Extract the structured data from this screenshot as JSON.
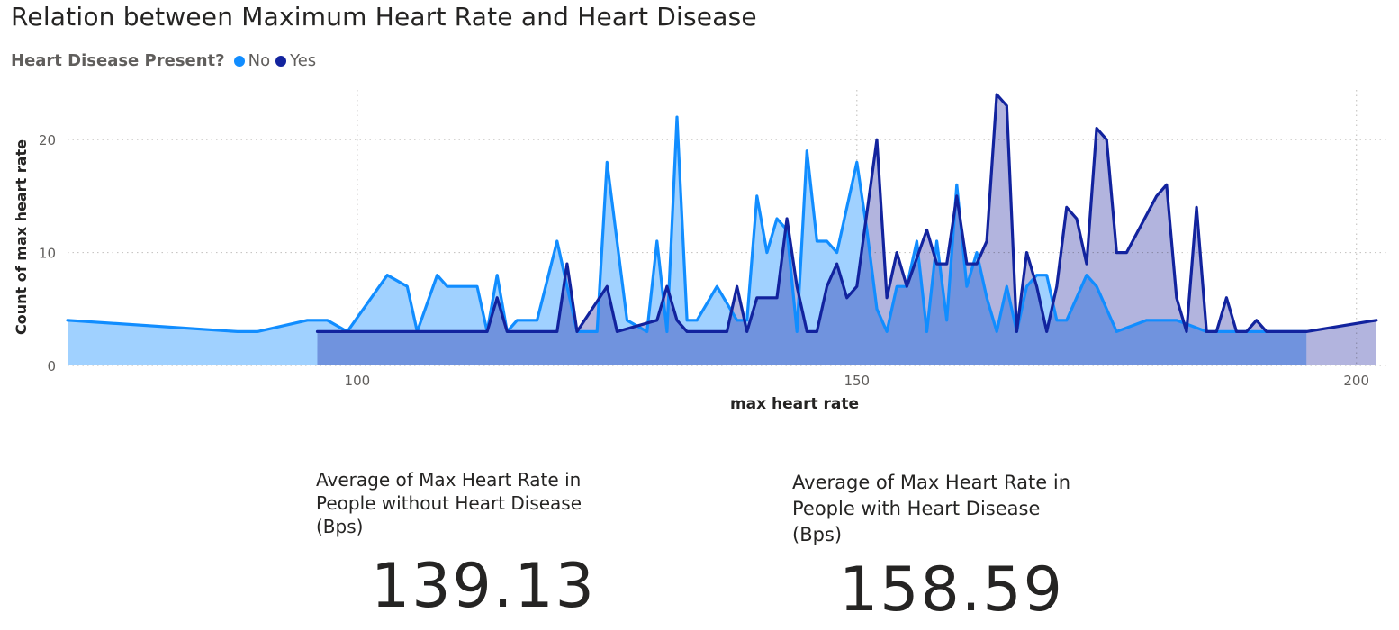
{
  "title": "Relation between Maximum Heart Rate and Heart Disease",
  "legend": {
    "title": "Heart Disease Present?",
    "items": [
      {
        "label": "No",
        "color": "#118DFF"
      },
      {
        "label": "Yes",
        "color": "#12239E"
      }
    ]
  },
  "chart_data": {
    "type": "area",
    "xlabel": "max heart rate",
    "ylabel": "Count of max heart rate",
    "xlim": [
      71,
      203
    ],
    "ylim": [
      0,
      24
    ],
    "x_ticks": [
      100,
      150,
      200
    ],
    "y_ticks": [
      0,
      10,
      20
    ],
    "grid": true,
    "series": [
      {
        "name": "No",
        "color": "#118DFF",
        "fill": "#A0D1FF",
        "points": [
          [
            71,
            4
          ],
          [
            88,
            3
          ],
          [
            90,
            3
          ],
          [
            95,
            4
          ],
          [
            97,
            4
          ],
          [
            99,
            3
          ],
          [
            103,
            8
          ],
          [
            105,
            7
          ],
          [
            106,
            3
          ],
          [
            108,
            8
          ],
          [
            109,
            7
          ],
          [
            112,
            7
          ],
          [
            113,
            3
          ],
          [
            114,
            8
          ],
          [
            115,
            3
          ],
          [
            116,
            4
          ],
          [
            118,
            4
          ],
          [
            120,
            11
          ],
          [
            122,
            3
          ],
          [
            124,
            3
          ],
          [
            125,
            18
          ],
          [
            127,
            4
          ],
          [
            129,
            3
          ],
          [
            130,
            11
          ],
          [
            131,
            3
          ],
          [
            132,
            22
          ],
          [
            133,
            4
          ],
          [
            134,
            4
          ],
          [
            136,
            7
          ],
          [
            138,
            4
          ],
          [
            139,
            4
          ],
          [
            140,
            15
          ],
          [
            141,
            10
          ],
          [
            142,
            13
          ],
          [
            143,
            12
          ],
          [
            144,
            3
          ],
          [
            145,
            19
          ],
          [
            146,
            11
          ],
          [
            147,
            11
          ],
          [
            148,
            10
          ],
          [
            150,
            18
          ],
          [
            151,
            12
          ],
          [
            152,
            5
          ],
          [
            153,
            3
          ],
          [
            154,
            7
          ],
          [
            155,
            7
          ],
          [
            156,
            11
          ],
          [
            157,
            3
          ],
          [
            158,
            11
          ],
          [
            159,
            4
          ],
          [
            160,
            16
          ],
          [
            161,
            7
          ],
          [
            162,
            10
          ],
          [
            163,
            6
          ],
          [
            164,
            3
          ],
          [
            165,
            7
          ],
          [
            166,
            3
          ],
          [
            167,
            7
          ],
          [
            168,
            8
          ],
          [
            169,
            8
          ],
          [
            170,
            4
          ],
          [
            171,
            4
          ],
          [
            173,
            8
          ],
          [
            174,
            7
          ],
          [
            176,
            3
          ],
          [
            179,
            4
          ],
          [
            182,
            4
          ],
          [
            185,
            3
          ],
          [
            188,
            3
          ],
          [
            190,
            3
          ],
          [
            195,
            3
          ]
        ]
      },
      {
        "name": "Yes",
        "color": "#12239E",
        "fill": "#A5A7D8",
        "points": [
          [
            96,
            3
          ],
          [
            110,
            3
          ],
          [
            113,
            3
          ],
          [
            114,
            6
          ],
          [
            115,
            3
          ],
          [
            118,
            3
          ],
          [
            120,
            3
          ],
          [
            121,
            9
          ],
          [
            122,
            3
          ],
          [
            125,
            7
          ],
          [
            126,
            3
          ],
          [
            130,
            4
          ],
          [
            131,
            7
          ],
          [
            132,
            4
          ],
          [
            133,
            3
          ],
          [
            137,
            3
          ],
          [
            138,
            7
          ],
          [
            139,
            3
          ],
          [
            140,
            6
          ],
          [
            142,
            6
          ],
          [
            143,
            13
          ],
          [
            144,
            7
          ],
          [
            145,
            3
          ],
          [
            146,
            3
          ],
          [
            147,
            7
          ],
          [
            148,
            9
          ],
          [
            149,
            6
          ],
          [
            150,
            7
          ],
          [
            152,
            20
          ],
          [
            153,
            6
          ],
          [
            154,
            10
          ],
          [
            155,
            7
          ],
          [
            157,
            12
          ],
          [
            158,
            9
          ],
          [
            159,
            9
          ],
          [
            160,
            15
          ],
          [
            161,
            9
          ],
          [
            162,
            9
          ],
          [
            163,
            11
          ],
          [
            164,
            24
          ],
          [
            165,
            23
          ],
          [
            166,
            3
          ],
          [
            167,
            10
          ],
          [
            168,
            7
          ],
          [
            169,
            3
          ],
          [
            170,
            7
          ],
          [
            171,
            14
          ],
          [
            172,
            13
          ],
          [
            173,
            9
          ],
          [
            174,
            21
          ],
          [
            175,
            20
          ],
          [
            176,
            10
          ],
          [
            177,
            10
          ],
          [
            180,
            15
          ],
          [
            181,
            16
          ],
          [
            182,
            6
          ],
          [
            183,
            3
          ],
          [
            184,
            14
          ],
          [
            185,
            3
          ],
          [
            186,
            3
          ],
          [
            187,
            6
          ],
          [
            188,
            3
          ],
          [
            189,
            3
          ],
          [
            190,
            4
          ],
          [
            191,
            3
          ],
          [
            192,
            3
          ],
          [
            195,
            3
          ],
          [
            202,
            4
          ]
        ]
      }
    ]
  },
  "cards": [
    {
      "label": [
        "Average of Max Heart Rate in",
        "People without Heart Disease",
        "(Bps)"
      ],
      "value": "139.13"
    },
    {
      "label": [
        "Average of Max Heart Rate in",
        "People with Heart Disease",
        "(Bps)"
      ],
      "value": "158.59"
    }
  ]
}
